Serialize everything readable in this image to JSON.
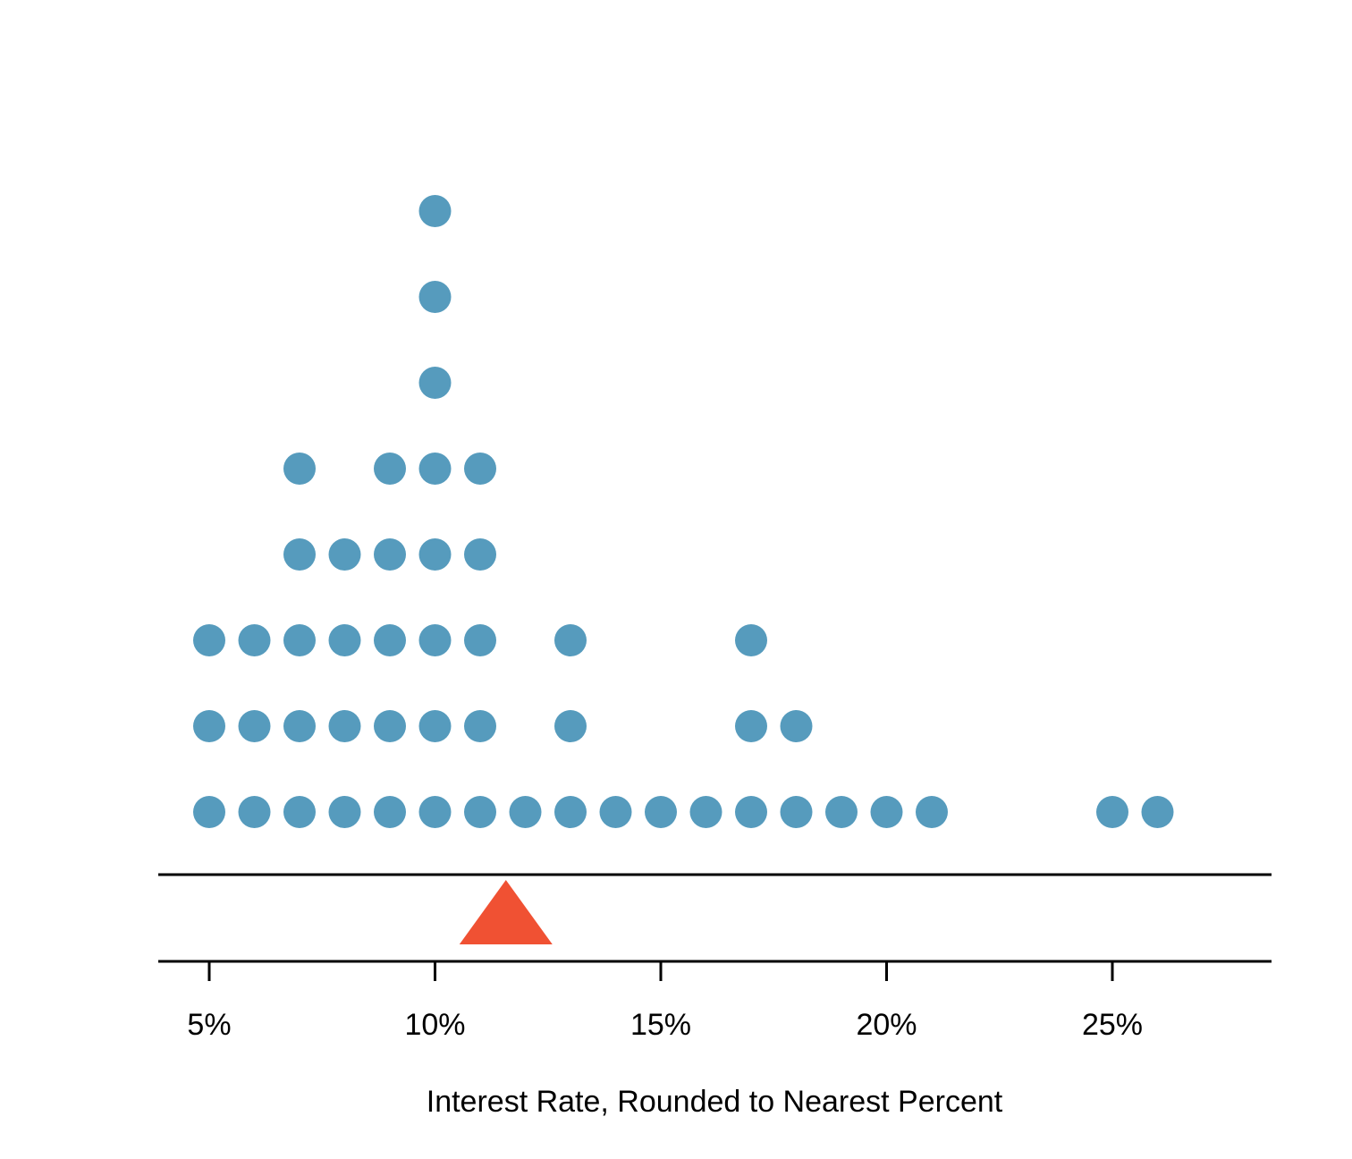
{
  "chart_data": {
    "type": "dot",
    "xlabel": "Interest Rate, Rounded to Nearest Percent",
    "x_ticks": [
      {
        "value": 5,
        "label": "5%"
      },
      {
        "value": 10,
        "label": "10%"
      },
      {
        "value": 15,
        "label": "15%"
      },
      {
        "value": 20,
        "label": "20%"
      },
      {
        "value": 25,
        "label": "25%"
      }
    ],
    "xlim": [
      3.87,
      28.5
    ],
    "counts": [
      {
        "x": 5,
        "count": 3
      },
      {
        "x": 6,
        "count": 3
      },
      {
        "x": 7,
        "count": 5
      },
      {
        "x": 8,
        "count": 4
      },
      {
        "x": 9,
        "count": 5
      },
      {
        "x": 10,
        "count": 8
      },
      {
        "x": 11,
        "count": 5
      },
      {
        "x": 12,
        "count": 1
      },
      {
        "x": 13,
        "count": 3
      },
      {
        "x": 14,
        "count": 1
      },
      {
        "x": 15,
        "count": 1
      },
      {
        "x": 16,
        "count": 1
      },
      {
        "x": 17,
        "count": 3
      },
      {
        "x": 18,
        "count": 2
      },
      {
        "x": 19,
        "count": 1
      },
      {
        "x": 20,
        "count": 1
      },
      {
        "x": 21,
        "count": 1
      },
      {
        "x": 25,
        "count": 1
      },
      {
        "x": 26,
        "count": 1
      }
    ],
    "mean_marker": {
      "x": 11.57,
      "shape": "triangle"
    },
    "colors": {
      "dot": "#569BBD",
      "mean_marker": "#F05133",
      "axis": "#000000"
    }
  }
}
